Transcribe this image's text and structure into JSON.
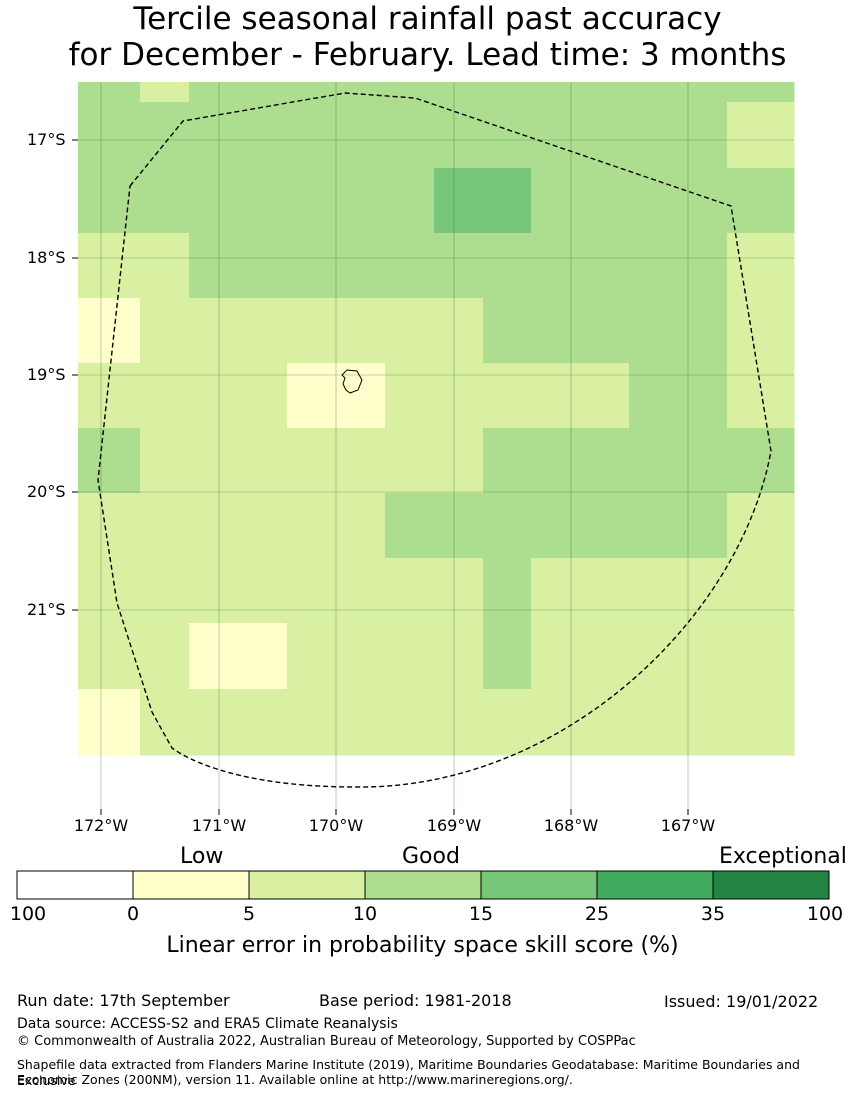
{
  "header": {
    "title_line1": "Tercile seasonal rainfall past accuracy",
    "title_line2": "for December - February. Lead time: 3 months"
  },
  "map": {
    "lat_labels": [
      "17°S",
      "18°S",
      "19°S",
      "20°S",
      "21°S"
    ],
    "lon_labels": [
      "172°W",
      "171°W",
      "170°W",
      "169°W",
      "168°W",
      "167°W"
    ],
    "grid_levels": [
      [
        3,
        2,
        3,
        3,
        3,
        3,
        3,
        3,
        3,
        3,
        3,
        3
      ],
      [
        3,
        3,
        3,
        3,
        3,
        3,
        3,
        3,
        3,
        3,
        3,
        2
      ],
      [
        3,
        3,
        3,
        3,
        3,
        3,
        3,
        4,
        4,
        3,
        3,
        3
      ],
      [
        2,
        2,
        3,
        3,
        3,
        3,
        3,
        3,
        3,
        3,
        3,
        2
      ],
      [
        1,
        2,
        2,
        2,
        2,
        2,
        2,
        2,
        3,
        3,
        3,
        2
      ],
      [
        2,
        2,
        2,
        2,
        1,
        1,
        2,
        2,
        2,
        2,
        3,
        2
      ],
      [
        3,
        2,
        2,
        2,
        2,
        2,
        2,
        2,
        3,
        3,
        3,
        3
      ],
      [
        2,
        2,
        2,
        2,
        2,
        2,
        3,
        3,
        3,
        3,
        3,
        2
      ],
      [
        2,
        2,
        2,
        2,
        2,
        2,
        2,
        2,
        3,
        2,
        2,
        2
      ],
      [
        2,
        2,
        1,
        1,
        2,
        2,
        2,
        2,
        3,
        2,
        2,
        2
      ],
      [
        1,
        2,
        2,
        2,
        2,
        2,
        2,
        2,
        2,
        2,
        2,
        2
      ]
    ]
  },
  "legend": {
    "categories": [
      "Low",
      "Good",
      "Exceptional"
    ],
    "tick_labels": [
      "100",
      "0",
      "5",
      "10",
      "15",
      "25",
      "35",
      "100"
    ],
    "colors": [
      "#ffffff",
      "#ffffcc",
      "#d9f0a3",
      "#addd8e",
      "#78c679",
      "#41ab5d",
      "#238443"
    ],
    "scale_label": "Linear error in probability space skill score (%)"
  },
  "footer": {
    "run_date": "Run date: 17th September",
    "base_period": "Base period: 1981-2018",
    "issued": "Issued: 19/01/2022",
    "data_source": "Data source: ACCESS-S2 and ERA5 Climate Reanalysis",
    "copyright": "© Commonwealth of Australia 2022, Australian Bureau of Meteorology, Supported by COSPPac",
    "shapefile_line1": "Shapefile data extracted from Flanders Marine Institute (2019), Maritime Boundaries Geodatabase: Maritime Boundaries and Exclusive",
    "shapefile_line2": "Economic Zones (200NM), version 11. Available online at http://www.marineregions.org/."
  }
}
